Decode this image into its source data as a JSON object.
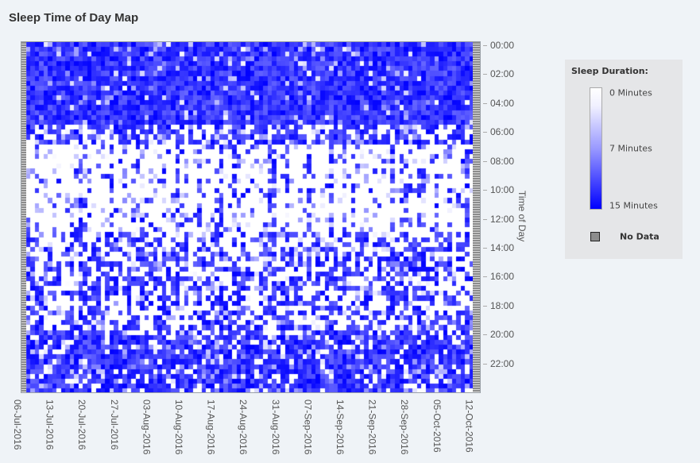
{
  "page": {
    "title": "Sleep Time of Day Map"
  },
  "legend": {
    "title": "Sleep Duration:",
    "labels": [
      "0 Minutes",
      "7 Minutes",
      "15 Minutes"
    ],
    "no_data": "No Data",
    "colors": {
      "min": "#ffffff",
      "max": "#0000ff",
      "no_data": "#8c8c8c"
    }
  },
  "chart_data": {
    "type": "heatmap",
    "title": "Sleep Time of Day Map",
    "xlabel": "",
    "ylabel": "Time of Day",
    "x_ticks": [
      "06-Jul-2016",
      "13-Jul-2016",
      "20-Jul-2016",
      "27-Jul-2016",
      "03-Aug-2016",
      "10-Aug-2016",
      "17-Aug-2016",
      "24-Aug-2016",
      "31-Aug-2016",
      "07-Sep-2016",
      "14-Sep-2016",
      "21-Sep-2016",
      "28-Sep-2016",
      "05-Oct-2016",
      "12-Oct-2016"
    ],
    "y_ticks": [
      "00:00",
      "02:00",
      "04:00",
      "06:00",
      "08:00",
      "10:00",
      "12:00",
      "14:00",
      "16:00",
      "18:00",
      "20:00",
      "22:00"
    ],
    "x_range": [
      "06-Jul-2016",
      "15-Oct-2016"
    ],
    "y_range": [
      "00:00",
      "24:00"
    ],
    "value_range_minutes": [
      0,
      15
    ],
    "n_days": 102,
    "slots_per_day": 72,
    "pattern": "Dense sleep (near 15 min per slot, blue) 00:00-06:00 nearly every day; mostly awake (white) 07:00-13:00 with scattered naps; mixed 13:00-19:00; increasing sleep 19:00-24:00"
  }
}
